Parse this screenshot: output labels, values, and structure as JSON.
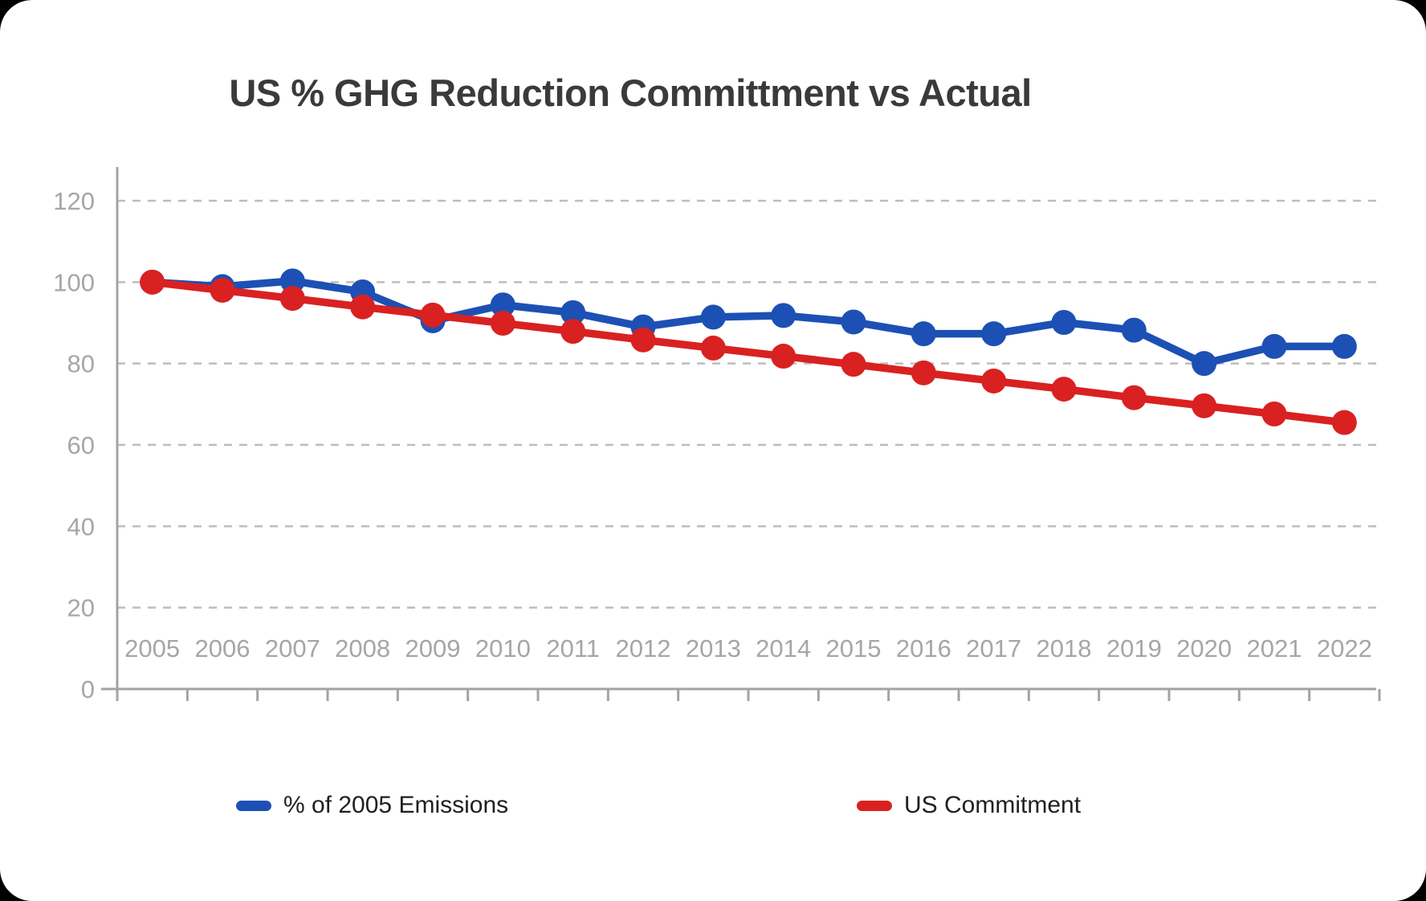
{
  "title": "US % GHG Reduction Committment vs Actual",
  "chart_data": {
    "type": "line",
    "categories": [
      "2005",
      "2006",
      "2007",
      "2008",
      "2009",
      "2010",
      "2011",
      "2012",
      "2013",
      "2014",
      "2015",
      "2016",
      "2017",
      "2018",
      "2019",
      "2020",
      "2021",
      "2022"
    ],
    "series": [
      {
        "name": "% of 2005 Emissions",
        "color": "#1d50b4",
        "values": [
          100,
          98.9,
          100.3,
          97.6,
          90.5,
          94.4,
          92.5,
          89.0,
          91.4,
          91.8,
          90.2,
          87.3,
          87.3,
          90.1,
          88.2,
          80.0,
          84.2,
          84.2
        ]
      },
      {
        "name": "US Commitment",
        "color": "#d92121",
        "values": [
          100,
          98.0,
          96.0,
          93.9,
          91.9,
          89.9,
          87.9,
          85.8,
          83.8,
          81.8,
          79.8,
          77.7,
          75.7,
          73.7,
          71.6,
          69.6,
          67.6,
          65.5
        ]
      }
    ],
    "xlabel": "",
    "ylabel": "",
    "ylim": [
      0,
      120
    ],
    "yticks": [
      0,
      20,
      40,
      60,
      80,
      100,
      120
    ],
    "grid": "horizontal-dashed",
    "legend_position": "bottom"
  },
  "styles": {
    "grid_color": "#bdbdbd",
    "axis_color": "#a3a3a3",
    "tick_label_color": "#a6a6a6"
  }
}
